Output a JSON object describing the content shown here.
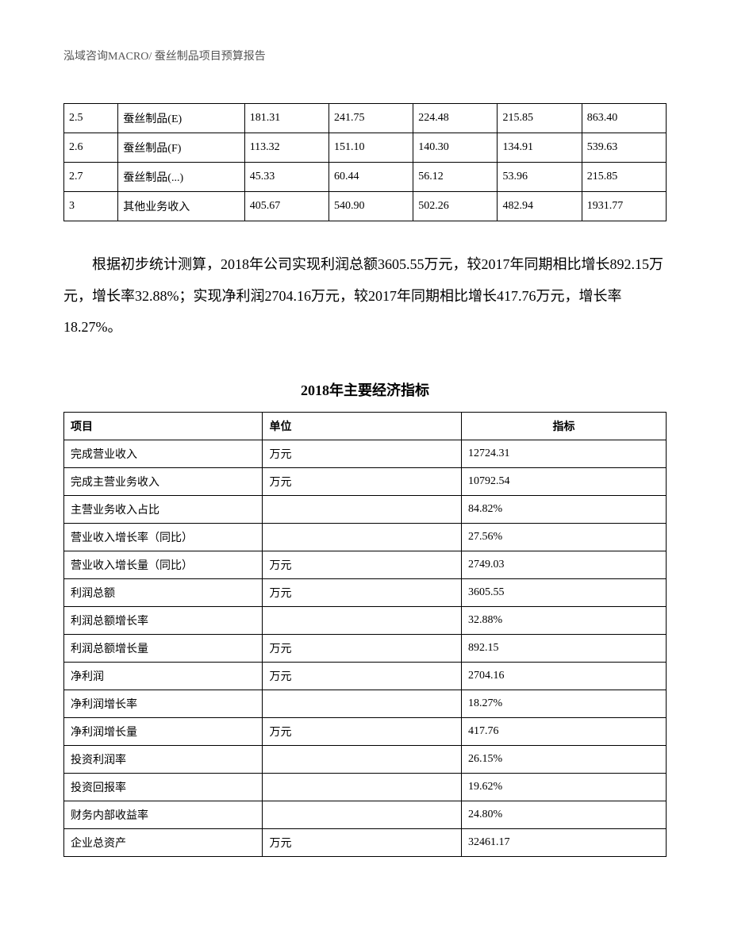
{
  "header": "泓域咨询MACRO/    蚕丝制品项目预算报告",
  "table1": {
    "type": "table",
    "rows": [
      [
        "2.5",
        "蚕丝制品(E)",
        "181.31",
        "241.75",
        "224.48",
        "215.85",
        "863.40"
      ],
      [
        "2.6",
        "蚕丝制品(F)",
        "113.32",
        "151.10",
        "140.30",
        "134.91",
        "539.63"
      ],
      [
        "2.7",
        "蚕丝制品(...)",
        "45.33",
        "60.44",
        "56.12",
        "53.96",
        "215.85"
      ],
      [
        "3",
        "其他业务收入",
        "405.67",
        "540.90",
        "502.26",
        "482.94",
        "1931.77"
      ]
    ]
  },
  "paragraph": "根据初步统计测算，2018年公司实现利润总额3605.55万元，较2017年同期相比增长892.15万元，增长率32.88%；实现净利润2704.16万元，较2017年同期相比增长417.76万元，增长率18.27%。",
  "table2": {
    "type": "table",
    "title": "2018年主要经济指标",
    "headers": [
      "项目",
      "单位",
      "指标"
    ],
    "rows": [
      [
        "完成营业收入",
        "万元",
        "12724.31"
      ],
      [
        "完成主营业务收入",
        "万元",
        "10792.54"
      ],
      [
        "主营业务收入占比",
        "",
        "84.82%"
      ],
      [
        "营业收入增长率（同比）",
        "",
        "27.56%"
      ],
      [
        "营业收入增长量（同比）",
        "万元",
        "2749.03"
      ],
      [
        "利润总额",
        "万元",
        "3605.55"
      ],
      [
        "利润总额增长率",
        "",
        "32.88%"
      ],
      [
        "利润总额增长量",
        "万元",
        "892.15"
      ],
      [
        "净利润",
        "万元",
        "2704.16"
      ],
      [
        "净利润增长率",
        "",
        "18.27%"
      ],
      [
        "净利润增长量",
        "万元",
        "417.76"
      ],
      [
        "投资利润率",
        "",
        "26.15%"
      ],
      [
        "投资回报率",
        "",
        "19.62%"
      ],
      [
        "财务内部收益率",
        "",
        "24.80%"
      ],
      [
        "企业总资产",
        "万元",
        "32461.17"
      ]
    ]
  }
}
